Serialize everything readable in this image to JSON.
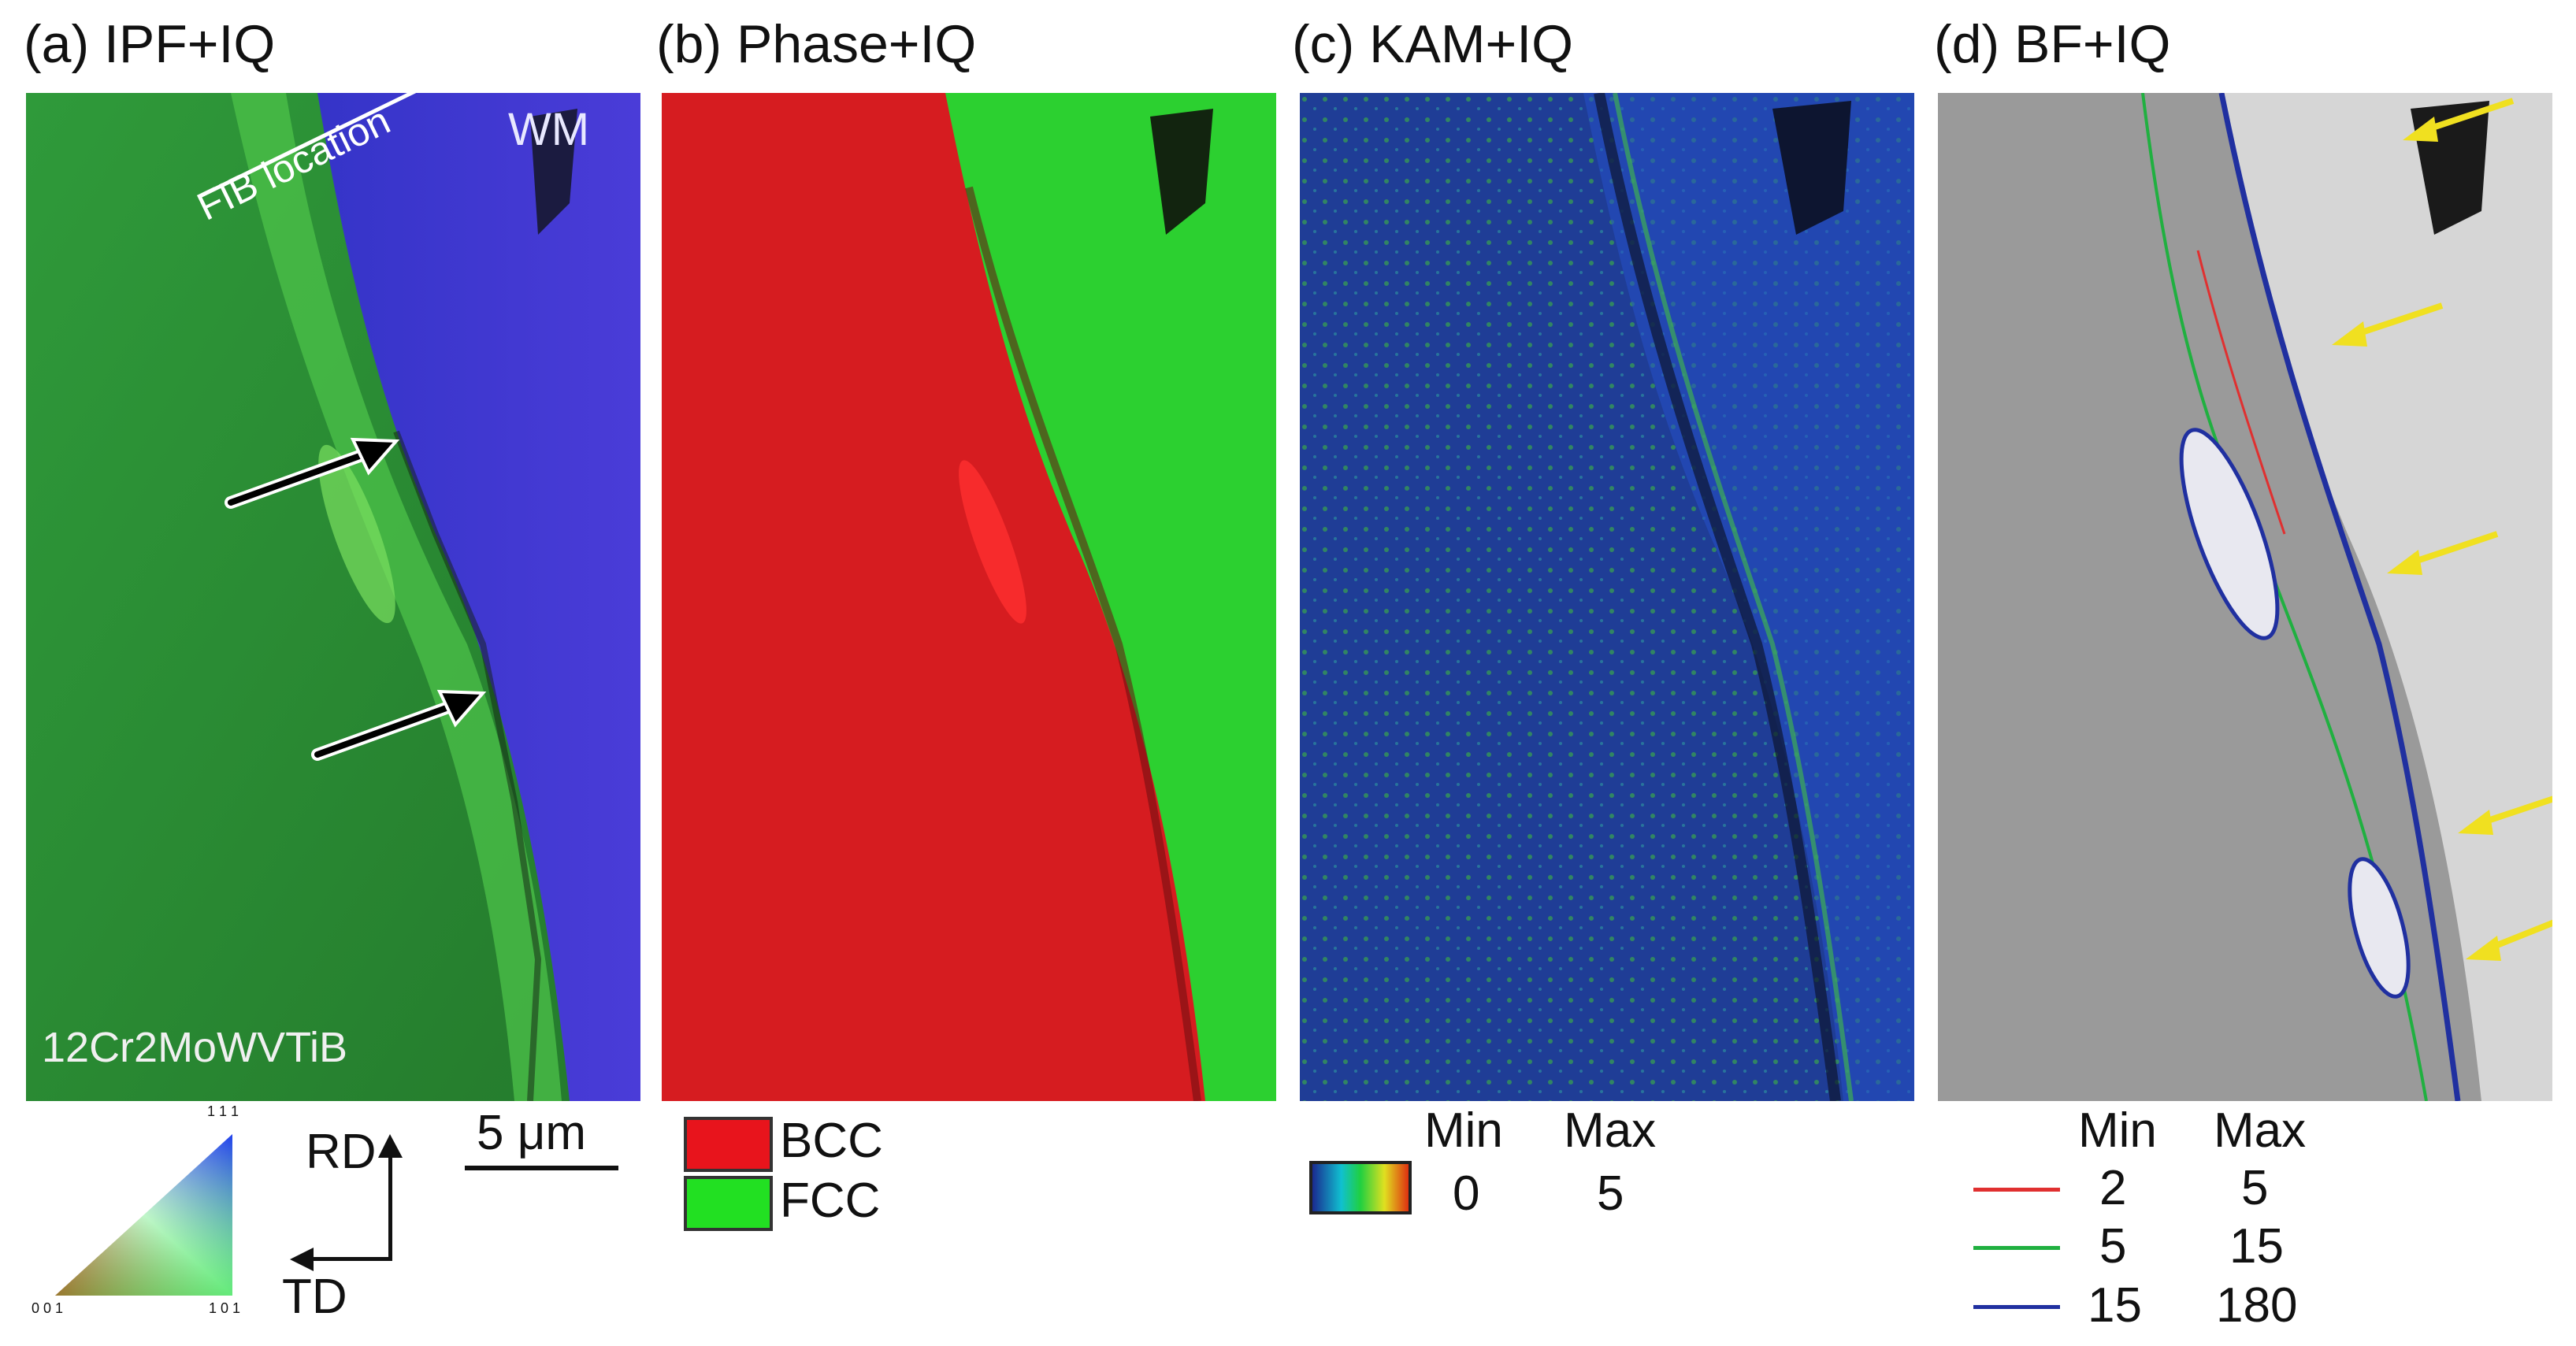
{
  "panels": [
    {
      "title": "(a) IPF+IQ",
      "wm_label": "WM",
      "fib_label": "FIB location",
      "material": "12Cr2MoWVTiB"
    },
    {
      "title": "(b) Phase+IQ"
    },
    {
      "title": "(c) KAM+IQ"
    },
    {
      "title": "(d) BF+IQ"
    }
  ],
  "ipf_legend": {
    "corner_top": "1 1 1",
    "corner_left": "0 0 1",
    "corner_right": "1 0 1"
  },
  "axes": {
    "rd": "RD",
    "td": "TD"
  },
  "scale_bar": {
    "label": "5 μm"
  },
  "phase_legend": [
    {
      "name": "BCC",
      "color": "#e8141c"
    },
    {
      "name": "FCC",
      "color": "#22e022"
    }
  ],
  "kam_legend": {
    "min_header": "Min",
    "max_header": "Max",
    "min_value": "0",
    "max_value": "5"
  },
  "bf_legend": {
    "min_header": "Min",
    "max_header": "Max",
    "rows": [
      {
        "min": "2",
        "max": "5",
        "color": "#e03030"
      },
      {
        "min": "5",
        "max": "15",
        "color": "#20b040"
      },
      {
        "min": "15",
        "max": "180",
        "color": "#2030a0"
      }
    ]
  }
}
